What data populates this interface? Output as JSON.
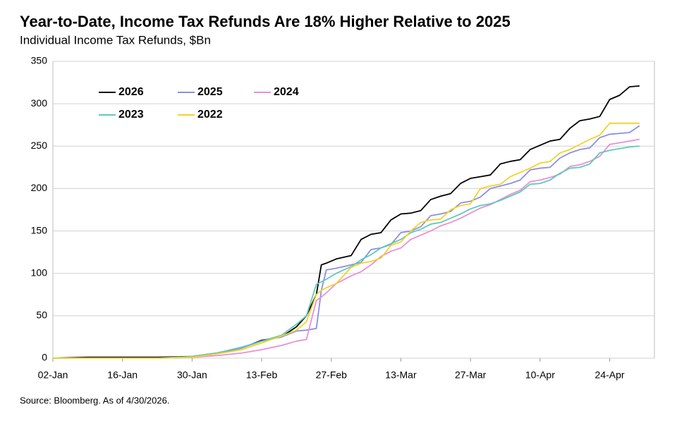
{
  "chart_data": {
    "type": "line",
    "title": "Year-to-Date, Income Tax Refunds Are 18% Higher Relative to 2025",
    "subtitle": "Individual Income Tax Refunds, $Bn",
    "source": "Source: Bloomberg. As of 4/30/2026.",
    "x": [
      2,
      9,
      16,
      23,
      30,
      35,
      40,
      44,
      48,
      51,
      53,
      55,
      56,
      57,
      59,
      62,
      64,
      66,
      68,
      70,
      72,
      74,
      76,
      78,
      80,
      82,
      84,
      86,
      88,
      90,
      92,
      94,
      96,
      98,
      100,
      102,
      104,
      106,
      108,
      110,
      112,
      114,
      116,
      118,
      120
    ],
    "xlim": [
      2,
      123
    ],
    "xticks": [
      {
        "value": 2,
        "label": "02-Jan"
      },
      {
        "value": 16,
        "label": "16-Jan"
      },
      {
        "value": 30,
        "label": "30-Jan"
      },
      {
        "value": 44,
        "label": "13-Feb"
      },
      {
        "value": 58,
        "label": "27-Feb"
      },
      {
        "value": 72,
        "label": "13-Mar"
      },
      {
        "value": 86,
        "label": "27-Mar"
      },
      {
        "value": 100,
        "label": "10-Apr"
      },
      {
        "value": 114,
        "label": "24-Apr"
      }
    ],
    "ylim": [
      0,
      350
    ],
    "yticks": [
      0,
      50,
      100,
      150,
      200,
      250,
      300,
      350
    ],
    "grid": true,
    "series": [
      {
        "name": "2026",
        "color": "#000000",
        "values": [
          0,
          1,
          1,
          1,
          2,
          6,
          12,
          21,
          25,
          37,
          50,
          75,
          110,
          112,
          117,
          121,
          140,
          146,
          148,
          163,
          170,
          171,
          174,
          187,
          191,
          194,
          206,
          212,
          214,
          216,
          229,
          232,
          234,
          246,
          251,
          256,
          258,
          271,
          280,
          282,
          285,
          305,
          310,
          320,
          321
        ]
      },
      {
        "name": "2025",
        "color": "#8b8fe3",
        "values": [
          0,
          0,
          0,
          0,
          1,
          6,
          12,
          20,
          25,
          32,
          33,
          35,
          80,
          104,
          106,
          110,
          113,
          128,
          130,
          134,
          148,
          150,
          155,
          168,
          170,
          173,
          183,
          185,
          190,
          200,
          203,
          206,
          210,
          222,
          224,
          225,
          236,
          242,
          246,
          248,
          260,
          264,
          265,
          266,
          274
        ]
      },
      {
        "name": "2024",
        "color": "#e98fd9",
        "values": [
          0,
          0,
          0,
          0,
          1,
          3,
          6,
          10,
          15,
          20,
          22,
          68,
          72,
          77,
          88,
          97,
          102,
          110,
          120,
          126,
          130,
          140,
          145,
          150,
          156,
          160,
          165,
          171,
          177,
          181,
          187,
          193,
          198,
          208,
          210,
          213,
          217,
          226,
          228,
          232,
          238,
          252,
          254,
          256,
          258
        ]
      },
      {
        "name": "2023",
        "color": "#5fc9b9",
        "values": [
          0,
          0,
          0,
          0,
          2,
          6,
          13,
          20,
          27,
          40,
          50,
          87,
          90,
          93,
          100,
          108,
          116,
          122,
          130,
          135,
          140,
          148,
          152,
          158,
          160,
          165,
          170,
          176,
          180,
          182,
          186,
          191,
          196,
          205,
          206,
          210,
          218,
          224,
          225,
          229,
          242,
          245,
          247,
          249,
          250
        ]
      },
      {
        "name": "2022",
        "color": "#f4d22a",
        "values": [
          0,
          0,
          0,
          0,
          1,
          5,
          10,
          18,
          26,
          33,
          43,
          75,
          80,
          83,
          88,
          107,
          112,
          114,
          118,
          133,
          137,
          150,
          160,
          163,
          164,
          175,
          180,
          182,
          200,
          203,
          205,
          214,
          219,
          224,
          230,
          232,
          242,
          246,
          252,
          258,
          263,
          277,
          277,
          277,
          277
        ]
      }
    ]
  }
}
